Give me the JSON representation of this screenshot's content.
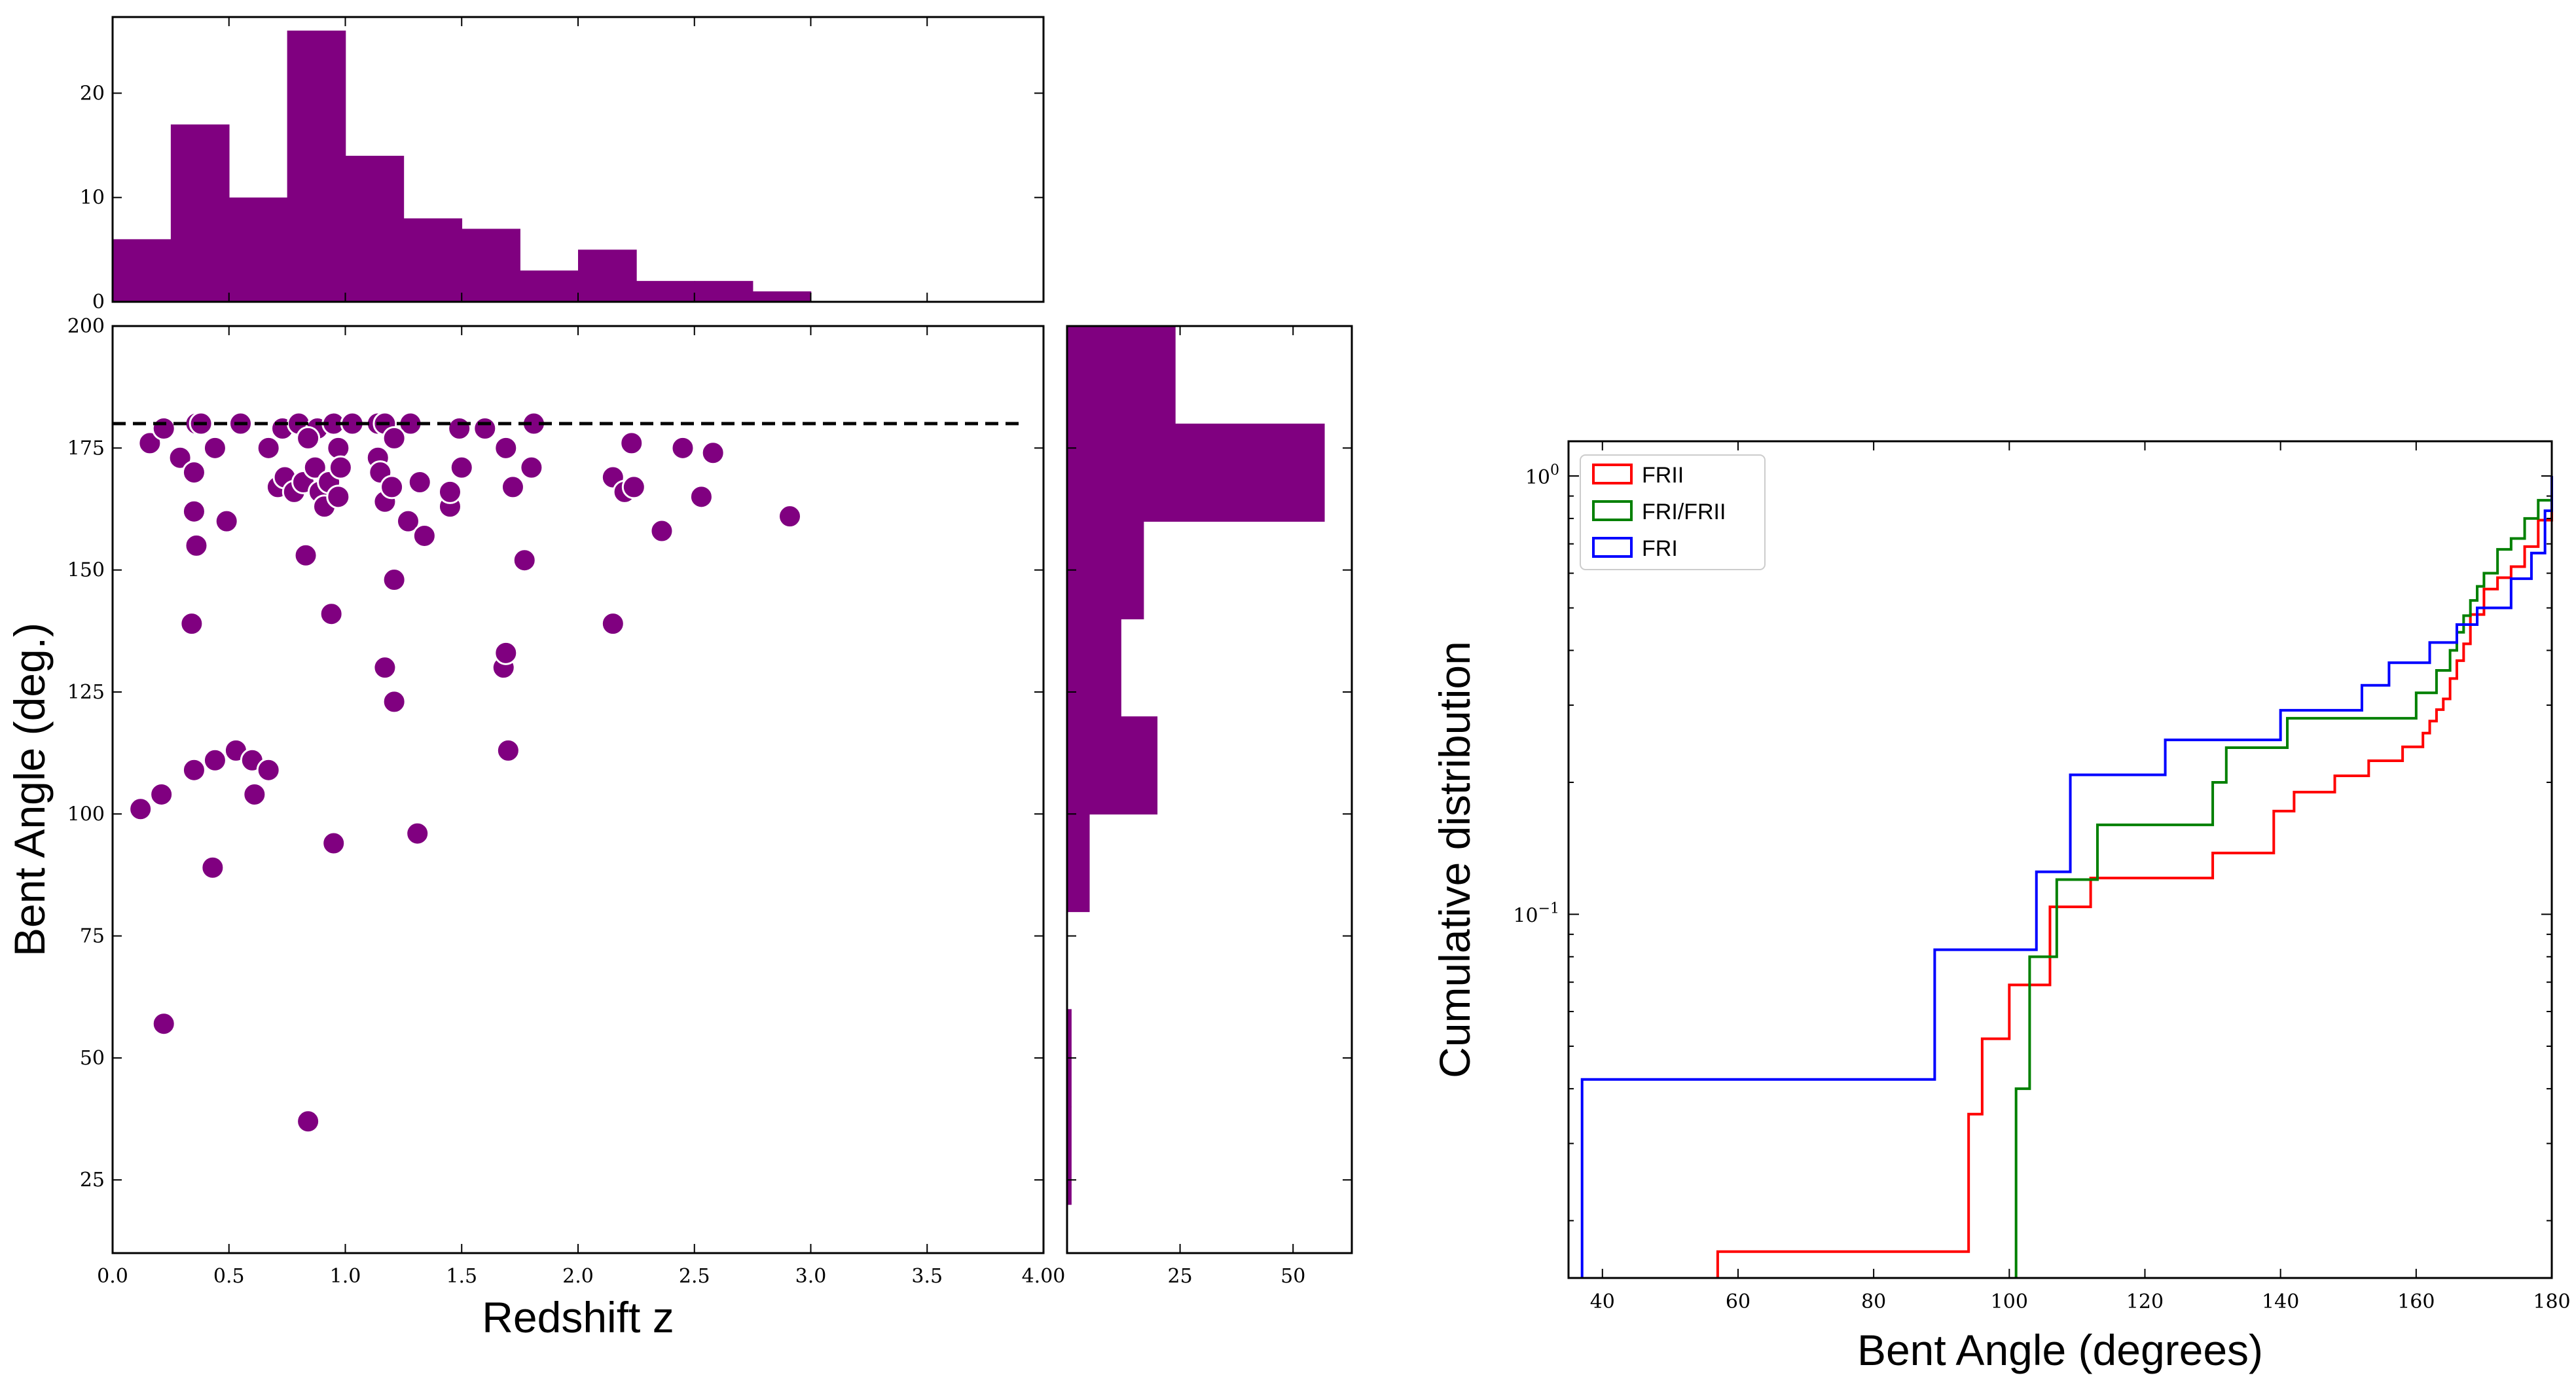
{
  "chart_data": [
    {
      "id": "redshift_histogram",
      "type": "bar",
      "color": "#800080",
      "bin_edges": [
        0.0,
        0.25,
        0.5,
        0.75,
        1.0,
        1.25,
        1.5,
        1.75,
        2.0,
        2.25,
        2.5,
        2.75,
        3.0
      ],
      "counts": [
        6,
        17,
        10,
        26,
        14,
        8,
        7,
        3,
        5,
        2,
        2,
        1
      ],
      "xlim": [
        0.0,
        4.0
      ],
      "ylim": [
        0,
        27.3
      ],
      "yticks": [
        0,
        10,
        20
      ],
      "ytick_labels": [
        "0",
        "10",
        "20"
      ],
      "xticks": [
        0.0,
        0.5,
        1.0,
        1.5,
        2.0,
        2.5,
        3.0,
        3.5
      ]
    },
    {
      "id": "bent_angle_vs_redshift",
      "type": "scatter",
      "color": "#800080",
      "xlabel": "Redshift z",
      "ylabel": "Bent Angle (deg.)",
      "xlim": [
        0.0,
        4.0
      ],
      "ylim": [
        10,
        200
      ],
      "xticks": [
        0.0,
        0.5,
        1.0,
        1.5,
        2.0,
        2.5,
        3.0,
        3.5,
        4.0
      ],
      "xtick_labels": [
        "0.0",
        "0.5",
        "1.0",
        "1.5",
        "2.0",
        "2.5",
        "3.0",
        "3.5",
        "4.00"
      ],
      "yticks": [
        25,
        50,
        75,
        100,
        125,
        150,
        175,
        200
      ],
      "ytick_labels": [
        "25",
        "50",
        "75",
        "100",
        "125",
        "150",
        "175",
        "200"
      ],
      "reference_line": {
        "y": 180,
        "x_range": [
          0.0,
          3.9
        ],
        "style": "dashed"
      },
      "points": [
        [
          0.16,
          176
        ],
        [
          0.22,
          179
        ],
        [
          0.29,
          173
        ],
        [
          0.36,
          180
        ],
        [
          0.38,
          180
        ],
        [
          0.55,
          180
        ],
        [
          0.35,
          170
        ],
        [
          0.44,
          175
        ],
        [
          0.35,
          162
        ],
        [
          0.36,
          155
        ],
        [
          0.34,
          139
        ],
        [
          0.49,
          160
        ],
        [
          0.67,
          175
        ],
        [
          0.73,
          179
        ],
        [
          0.8,
          180
        ],
        [
          0.88,
          179
        ],
        [
          0.95,
          180
        ],
        [
          1.03,
          180
        ],
        [
          1.14,
          180
        ],
        [
          1.17,
          180
        ],
        [
          1.28,
          180
        ],
        [
          1.49,
          179
        ],
        [
          1.6,
          179
        ],
        [
          1.81,
          180
        ],
        [
          0.71,
          167
        ],
        [
          0.74,
          169
        ],
        [
          0.78,
          166
        ],
        [
          0.82,
          168
        ],
        [
          0.84,
          177
        ],
        [
          0.87,
          171
        ],
        [
          0.89,
          166
        ],
        [
          0.91,
          163
        ],
        [
          0.93,
          168
        ],
        [
          0.97,
          175
        ],
        [
          0.98,
          171
        ],
        [
          0.97,
          165
        ],
        [
          1.14,
          173
        ],
        [
          1.15,
          170
        ],
        [
          1.17,
          164
        ],
        [
          1.2,
          167
        ],
        [
          1.21,
          177
        ],
        [
          1.27,
          160
        ],
        [
          1.32,
          168
        ],
        [
          1.34,
          157
        ],
        [
          1.45,
          163
        ],
        [
          1.45,
          166
        ],
        [
          1.5,
          171
        ],
        [
          1.69,
          175
        ],
        [
          1.72,
          167
        ],
        [
          1.77,
          152
        ],
        [
          1.8,
          171
        ],
        [
          2.15,
          169
        ],
        [
          2.2,
          166
        ],
        [
          2.23,
          176
        ],
        [
          2.24,
          167
        ],
        [
          2.36,
          158
        ],
        [
          2.45,
          175
        ],
        [
          2.53,
          165
        ],
        [
          2.58,
          174
        ],
        [
          2.91,
          161
        ],
        [
          0.83,
          153
        ],
        [
          0.94,
          141
        ],
        [
          1.21,
          148
        ],
        [
          1.17,
          130
        ],
        [
          1.21,
          123
        ],
        [
          1.68,
          130
        ],
        [
          1.69,
          133
        ],
        [
          1.7,
          113
        ],
        [
          2.15,
          139
        ],
        [
          0.12,
          101
        ],
        [
          0.21,
          104
        ],
        [
          0.35,
          109
        ],
        [
          0.44,
          111
        ],
        [
          0.53,
          113
        ],
        [
          0.6,
          111
        ],
        [
          0.67,
          109
        ],
        [
          0.61,
          104
        ],
        [
          0.43,
          89
        ],
        [
          0.95,
          94
        ],
        [
          1.31,
          96
        ],
        [
          0.22,
          57
        ],
        [
          0.84,
          37
        ]
      ]
    },
    {
      "id": "bent_angle_histogram",
      "type": "bar",
      "orientation": "horizontal",
      "color": "#800080",
      "bin_edges": [
        20,
        40,
        60,
        80,
        100,
        120,
        140,
        160,
        180,
        200
      ],
      "counts": [
        1,
        1,
        0,
        5,
        20,
        12,
        17,
        57,
        24
      ],
      "xlim": [
        0,
        63
      ],
      "ylim": [
        10,
        200
      ],
      "xticks": [
        25,
        50
      ],
      "xtick_labels": [
        "25",
        "50"
      ]
    },
    {
      "id": "cumulative_distribution",
      "type": "line",
      "xlabel": "Bent Angle (degrees)",
      "ylabel": "Cumulative distribution",
      "yscale": "log",
      "xlim": [
        35,
        180
      ],
      "ylim": [
        0.0148,
        1.2
      ],
      "xticks": [
        40,
        60,
        80,
        100,
        120,
        140,
        160,
        180
      ],
      "xtick_labels": [
        "40",
        "60",
        "80",
        "100",
        "120",
        "140",
        "160",
        "180"
      ],
      "ytick_labels": [
        "10^0",
        "10^-1"
      ],
      "legend_position": "upper-left",
      "series": [
        {
          "name": "FRII",
          "color": "#ff0000",
          "x": [
            57,
            94,
            96,
            100,
            106,
            112,
            130,
            139,
            142,
            148,
            153,
            158,
            161,
            162,
            163,
            164,
            165,
            166,
            167,
            168,
            170,
            172,
            174,
            176,
            178,
            180
          ],
          "y": [
            0.017,
            0.035,
            0.052,
            0.069,
            0.104,
            0.121,
            0.138,
            0.172,
            0.19,
            0.207,
            0.224,
            0.241,
            0.259,
            0.276,
            0.293,
            0.31,
            0.345,
            0.379,
            0.414,
            0.483,
            0.552,
            0.586,
            0.621,
            0.69,
            0.793,
            1.0
          ]
        },
        {
          "name": "FRI/FRII",
          "color": "#008000",
          "x": [
            101,
            103,
            107,
            113,
            130,
            132,
            141,
            160,
            163,
            165,
            166,
            167,
            168,
            169,
            170,
            172,
            174,
            176,
            178,
            180
          ],
          "y": [
            0.04,
            0.08,
            0.12,
            0.16,
            0.2,
            0.24,
            0.28,
            0.32,
            0.36,
            0.4,
            0.44,
            0.48,
            0.52,
            0.56,
            0.6,
            0.68,
            0.72,
            0.8,
            0.88,
            1.0
          ]
        },
        {
          "name": "FRI",
          "color": "#0000ff",
          "x": [
            37,
            89,
            104,
            109,
            123,
            140,
            152,
            156,
            162,
            166,
            169,
            174,
            177,
            179,
            180
          ],
          "y": [
            0.042,
            0.083,
            0.125,
            0.208,
            0.25,
            0.292,
            0.333,
            0.375,
            0.417,
            0.458,
            0.5,
            0.583,
            0.667,
            0.833,
            1.0
          ]
        }
      ]
    }
  ]
}
